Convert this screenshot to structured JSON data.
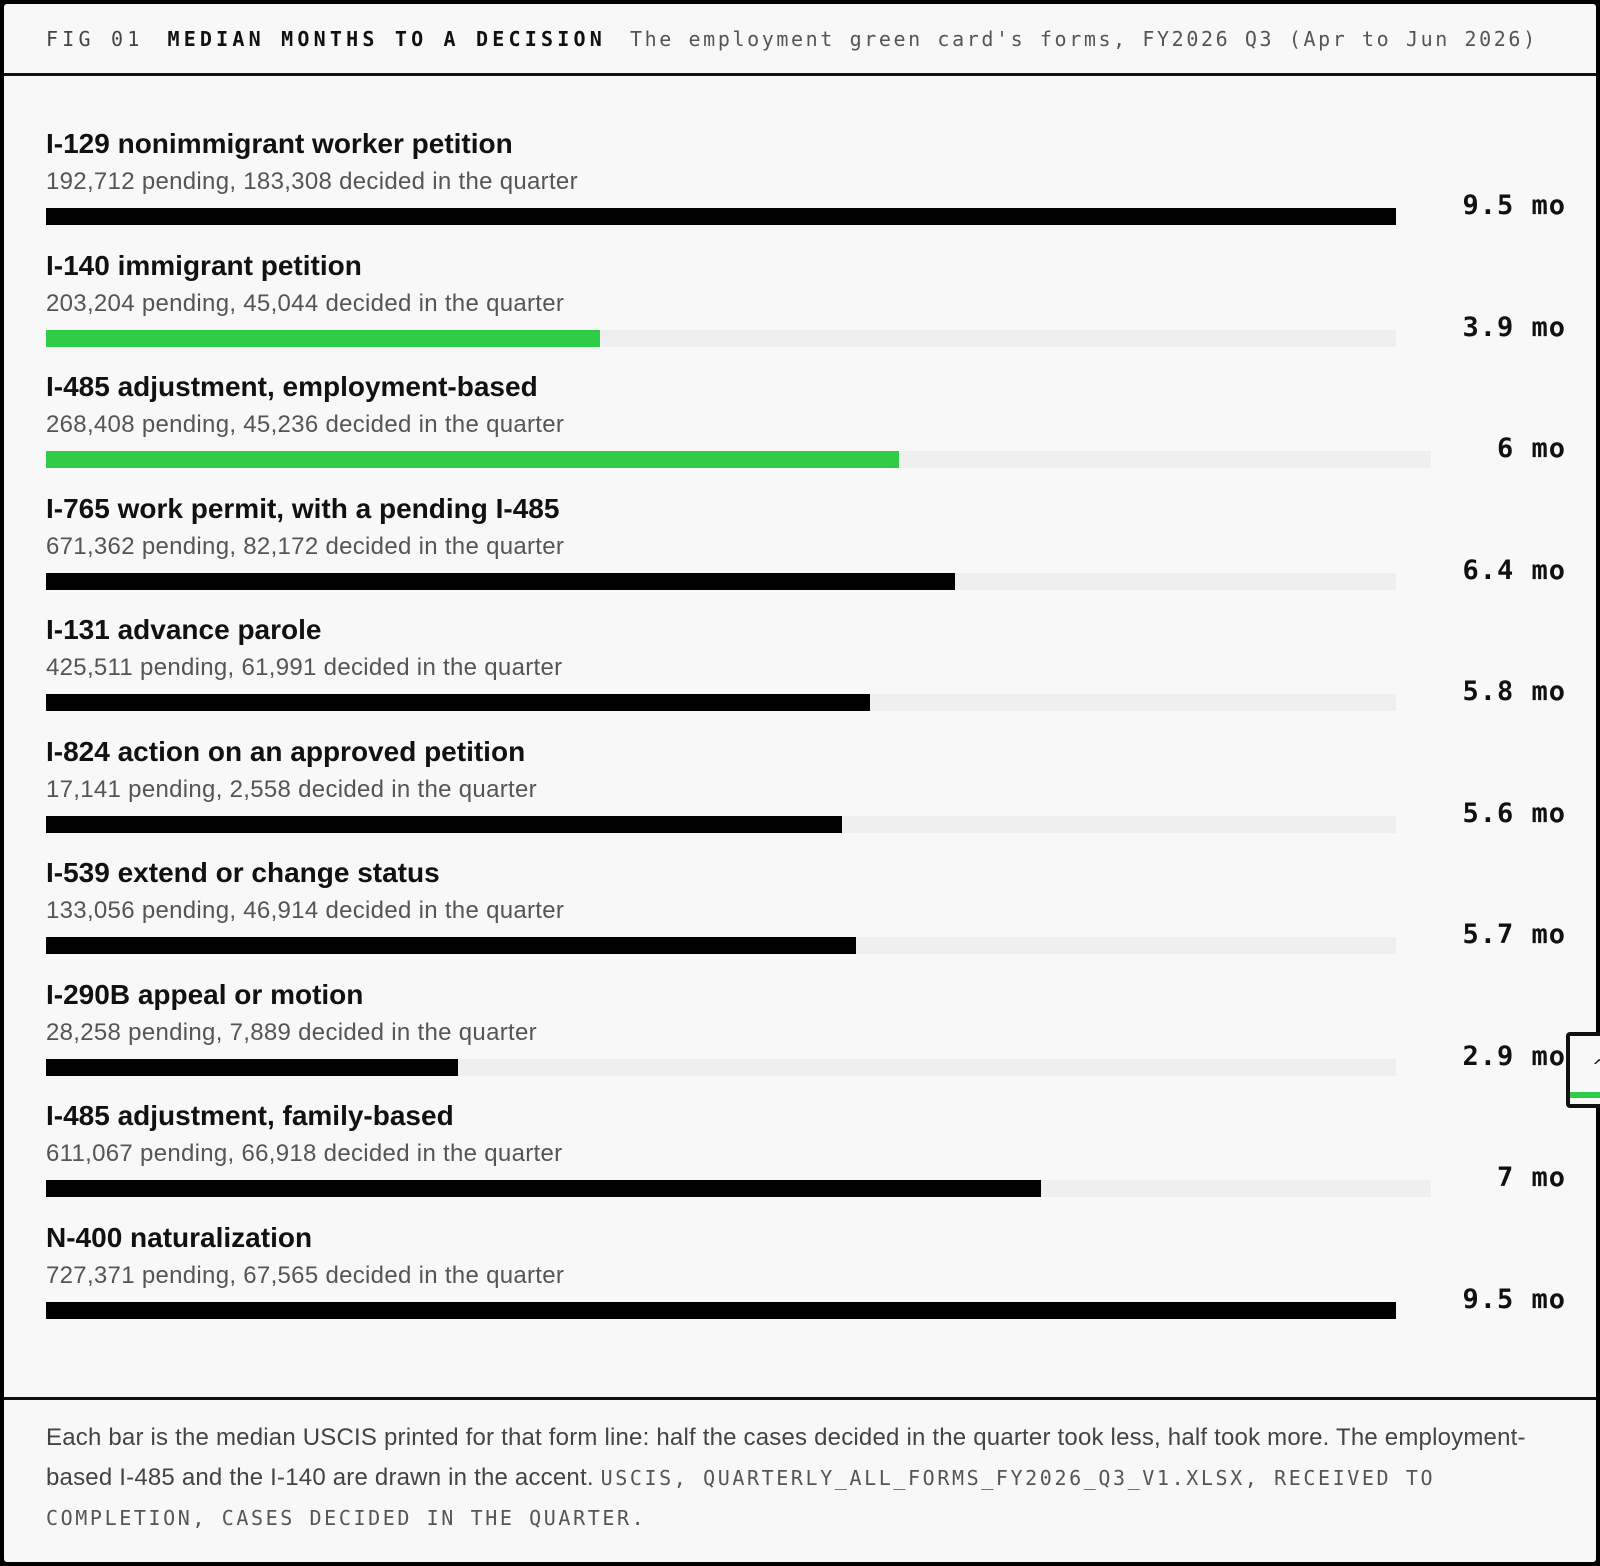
{
  "header": {
    "fig_num": "FIG 01",
    "title": "MEDIAN MONTHS TO A DECISION",
    "subtitle": "The employment green card's forms, FY2026 Q3 (Apr to Jun 2026)"
  },
  "colors": {
    "bar": "#000000",
    "accent": "#2fcc45",
    "track": "#efefef"
  },
  "chart_data": {
    "type": "bar",
    "orientation": "horizontal",
    "title": "MEDIAN MONTHS TO A DECISION",
    "subtitle": "The employment green card's forms, FY2026 Q3 (Apr to Jun 2026)",
    "unit": "mo",
    "xlim": [
      0,
      9.5
    ],
    "grid": false,
    "categories": [
      "I-129 nonimmigrant worker petition",
      "I-140 immigrant petition",
      "I-485 adjustment, employment-based",
      "I-765 work permit, with a pending I-485",
      "I-131 advance parole",
      "I-824 action on an approved petition",
      "I-539 extend or change status",
      "I-290B appeal or motion",
      "I-485 adjustment, family-based",
      "N-400 naturalization"
    ],
    "values": [
      9.5,
      3.9,
      6,
      6.4,
      5.8,
      5.6,
      5.7,
      2.9,
      7,
      9.5
    ],
    "value_labels": [
      "9.5 mo",
      "3.9 mo",
      "6 mo",
      "6.4 mo",
      "5.8 mo",
      "5.6 mo",
      "5.7 mo",
      "2.9 mo",
      "7 mo",
      "9.5 mo"
    ],
    "details": [
      "192,712 pending, 183,308 decided in the quarter",
      "203,204 pending, 45,044 decided in the quarter",
      "268,408 pending, 45,236 decided in the quarter",
      "671,362 pending, 82,172 decided in the quarter",
      "425,511 pending, 61,991 decided in the quarter",
      "17,141 pending, 2,558 decided in the quarter",
      "133,056 pending, 46,914 decided in the quarter",
      "28,258 pending, 7,889 decided in the quarter",
      "611,067 pending, 66,918 decided in the quarter",
      "727,371 pending, 67,565 decided in the quarter"
    ],
    "accent": [
      false,
      true,
      true,
      false,
      false,
      false,
      false,
      false,
      false,
      false
    ]
  },
  "footnote": {
    "text": "Each bar is the median USCIS printed for that form line: half the cases decided in the quarter took less, half took more. The employment-based I-485 and the I-140 are drawn in the accent.",
    "source": "USCIS, QUARTERLY_ALL_FORMS_FY2026_Q3_V1.XLSX, RECEIVED TO COMPLETION, CASES DECIDED IN THE QUARTER."
  }
}
